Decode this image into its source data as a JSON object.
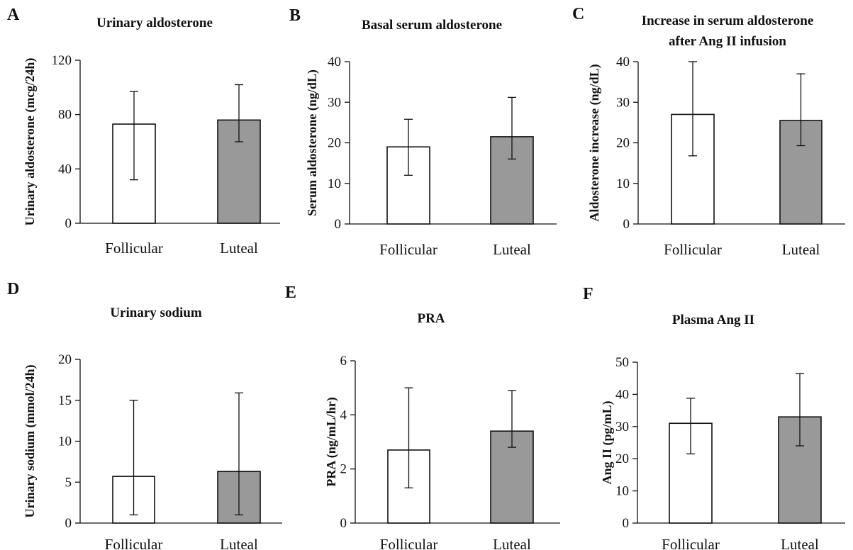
{
  "chart_data": [
    {
      "panel": "A",
      "type": "bar",
      "title": "Urinary aldosterone",
      "title_line2": "",
      "ylabel": "Urinary aldosterone (mcg/24h)",
      "ylim": [
        0,
        120
      ],
      "yticks": [
        0,
        40,
        80,
        120
      ],
      "categories": [
        "Follicular",
        "Luteal"
      ],
      "values": [
        73,
        76
      ],
      "error_low": [
        32,
        60
      ],
      "error_high": [
        97,
        102
      ],
      "bar_colors": [
        "#ffffff",
        "#999999"
      ]
    },
    {
      "panel": "B",
      "type": "bar",
      "title": "Basal serum aldosterone",
      "title_line2": "",
      "ylabel": "Serum aldosterone (ng/dL)",
      "ylim": [
        0,
        40
      ],
      "yticks": [
        0,
        10,
        20,
        30,
        40
      ],
      "categories": [
        "Follicular",
        "Luteal"
      ],
      "values": [
        19,
        21.5
      ],
      "error_low": [
        12,
        16
      ],
      "error_high": [
        25.8,
        31.2
      ],
      "bar_colors": [
        "#ffffff",
        "#999999"
      ]
    },
    {
      "panel": "C",
      "type": "bar",
      "title": "Increase in serum aldosterone",
      "title_line2": "after Ang II infusion",
      "ylabel": "Aldosterone increase (ng/dL)",
      "ylim": [
        0,
        40
      ],
      "yticks": [
        0,
        10,
        20,
        30,
        40
      ],
      "categories": [
        "Follicular",
        "Luteal"
      ],
      "values": [
        27,
        25.5
      ],
      "error_low": [
        16.8,
        19.3
      ],
      "error_high": [
        40,
        37
      ],
      "bar_colors": [
        "#ffffff",
        "#999999"
      ]
    },
    {
      "panel": "D",
      "type": "bar",
      "title": "Urinary sodium",
      "title_line2": "",
      "ylabel": "Urinary sodium (mmol/24h)",
      "ylim": [
        0,
        20
      ],
      "yticks": [
        0,
        5,
        10,
        15,
        20
      ],
      "categories": [
        "Follicular",
        "Luteal"
      ],
      "values": [
        5.7,
        6.3
      ],
      "error_low": [
        1,
        1
      ],
      "error_high": [
        15,
        15.9
      ],
      "bar_colors": [
        "#ffffff",
        "#999999"
      ]
    },
    {
      "panel": "E",
      "type": "bar",
      "title": "PRA",
      "title_line2": "",
      "ylabel": "PRA (ng/mL/hr)",
      "ylim": [
        0,
        6
      ],
      "yticks": [
        0,
        2,
        4,
        6
      ],
      "categories": [
        "Follicular",
        "Luteal"
      ],
      "values": [
        2.7,
        3.4
      ],
      "error_low": [
        1.3,
        2.8
      ],
      "error_high": [
        5,
        4.9
      ],
      "bar_colors": [
        "#ffffff",
        "#999999"
      ]
    },
    {
      "panel": "F",
      "type": "bar",
      "title": "Plasma Ang II",
      "title_line2": "",
      "ylabel": "Ang II (pg/mL)",
      "ylim": [
        0,
        50
      ],
      "yticks": [
        0,
        10,
        20,
        30,
        40,
        50
      ],
      "categories": [
        "Follicular",
        "Luteal"
      ],
      "values": [
        31,
        33
      ],
      "error_low": [
        21.5,
        24
      ],
      "error_high": [
        38.8,
        46.5
      ],
      "bar_colors": [
        "#ffffff",
        "#999999"
      ]
    }
  ]
}
